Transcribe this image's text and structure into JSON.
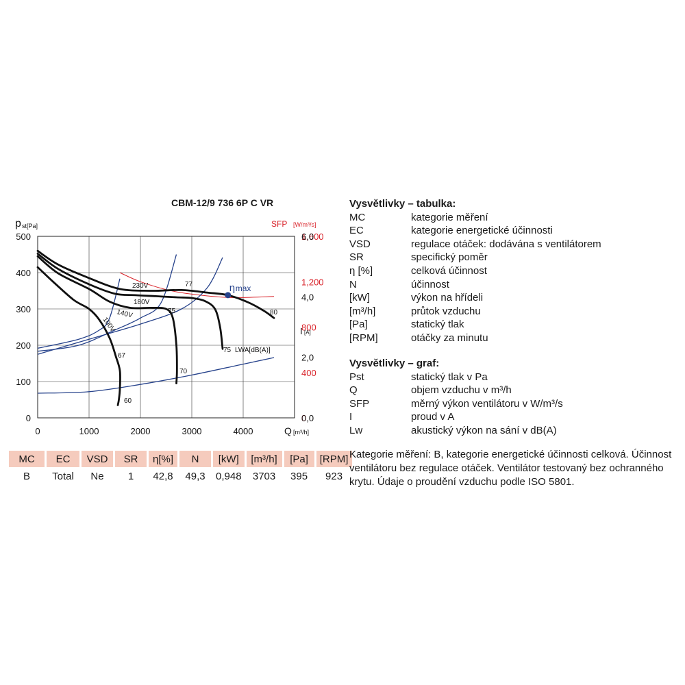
{
  "chart_data": {
    "type": "line",
    "title": "CBM-12/9 736 6P C VR",
    "xlabel": "Q",
    "xunit": "[m³/h]",
    "ylabel": "p",
    "ylabel_sub": "st[Pa]",
    "y2label": "SFP",
    "y2unit": "[W/m³/s]",
    "y3label": "I",
    "y3unit": "[A]",
    "xlim": [
      0,
      5000
    ],
    "ylim": [
      0,
      500
    ],
    "y2lim": [
      0,
      1600
    ],
    "y3lim": [
      0,
      6
    ],
    "x_ticks": [
      "0",
      "1000",
      "2000",
      "3000",
      "4000"
    ],
    "y_ticks": [
      "0",
      "100",
      "200",
      "300",
      "400",
      "500"
    ],
    "y2_ticks": [
      "0",
      "400",
      "800",
      "1,200",
      "1,600"
    ],
    "y3_ticks": [
      "0,0",
      "2,0",
      "4,0",
      "6,0"
    ],
    "grid": true,
    "colors": {
      "pressure": "#111111",
      "sfp": "#d9242b",
      "current": "#26428b",
      "eta": "#26428b"
    },
    "pressure_curves": [
      {
        "name": "230V",
        "x": [
          0,
          400,
          1000,
          1600,
          2200,
          2800,
          3300,
          3700,
          4100,
          4400,
          4600
        ],
        "y": [
          460,
          422,
          385,
          355,
          350,
          352,
          345,
          338,
          318,
          295,
          275
        ]
      },
      {
        "name": "180V",
        "x": [
          0,
          400,
          1000,
          1500,
          1900,
          2300,
          2700,
          3000,
          3250,
          3450,
          3550,
          3600
        ],
        "y": [
          452,
          410,
          368,
          342,
          338,
          335,
          332,
          330,
          322,
          300,
          250,
          190
        ]
      },
      {
        "name": "140V",
        "x": [
          0,
          400,
          1000,
          1400,
          1800,
          2200,
          2500,
          2630,
          2700,
          2710,
          2700
        ],
        "y": [
          445,
          398,
          355,
          320,
          303,
          303,
          300,
          275,
          200,
          130,
          95
        ]
      },
      {
        "name": "100V",
        "x": [
          0,
          300,
          700,
          1000,
          1200,
          1400,
          1520,
          1600,
          1600,
          1580,
          1560
        ],
        "y": [
          415,
          375,
          325,
          300,
          270,
          220,
          170,
          130,
          80,
          50,
          35
        ]
      }
    ],
    "sfp_curve": {
      "x": [
        1600,
        2000,
        2600,
        3200,
        3800,
        4600
      ],
      "y": [
        1280,
        1200,
        1120,
        1080,
        1060,
        1070
      ]
    },
    "current_curves": [
      {
        "x": [
          0,
          800,
          1200,
          1400,
          1600
        ],
        "y": [
          2.3,
          2.6,
          2.9,
          3.3,
          4.6
        ]
      },
      {
        "x": [
          0,
          800,
          1500,
          2000,
          2400,
          2700
        ],
        "y": [
          2.2,
          2.4,
          2.9,
          3.3,
          3.8,
          5.4
        ]
      },
      {
        "x": [
          0,
          1000,
          2000,
          2800,
          3300,
          3600
        ],
        "y": [
          2.1,
          2.6,
          3.1,
          3.6,
          4.3,
          5.3
        ]
      }
    ],
    "lwa_curve": {
      "x": [
        0,
        1000,
        2000,
        3000,
        4000,
        4600
      ],
      "y": [
        68,
        72,
        92,
        118,
        148,
        166
      ]
    },
    "eta_max_point": {
      "x": 3703,
      "y": 338
    },
    "labels": {
      "v230": "230V",
      "v180": "180V",
      "v140": "140V",
      "v100": "100V",
      "n77": "77",
      "n80": "80",
      "n75a": "75",
      "n75b": "75",
      "n70": "70",
      "n67": "67",
      "n60": "60",
      "lwa": "LWA[dB(A)]",
      "eta_sym": "η",
      "eta_sub": "max"
    }
  },
  "table": {
    "headers": [
      "MC",
      "EC",
      "VSD",
      "SR",
      "η[%]",
      "N",
      "[kW]",
      "[m³/h]",
      "[Pa]",
      "[RPM]"
    ],
    "values": [
      "B",
      "Total",
      "Ne",
      "1",
      "42,8",
      "49,3",
      "0,948",
      "3703",
      "395",
      "923"
    ]
  },
  "legend_table": {
    "title": "Vysvětlivky – tabulka:",
    "items": [
      {
        "key": "MC",
        "value": "kategorie měření"
      },
      {
        "key": "EC",
        "value": "kategorie energetické účinnosti"
      },
      {
        "key": "VSD",
        "value": "regulace otáček: dodávána s ventilátorem"
      },
      {
        "key": "SR",
        "value": "specifický poměr"
      },
      {
        "key": "η [%]",
        "value": "celková účinnost"
      },
      {
        "key": "N",
        "value": "účinnost"
      },
      {
        "key": "[kW]",
        "value": "výkon na hřídeli"
      },
      {
        "key": "[m³/h]",
        "value": "průtok vzduchu"
      },
      {
        "key": "[Pa]",
        "value": "statický tlak"
      },
      {
        "key": "[RPM]",
        "value": "otáčky za minutu"
      }
    ]
  },
  "legend_graph": {
    "title": "Vysvětlivky – graf:",
    "items": [
      {
        "key": "Pst",
        "value": "statický tlak v Pa"
      },
      {
        "key": "Q",
        "value": "objem vzduchu v m³/h"
      },
      {
        "key": "SFP",
        "value": "měrný výkon ventilátoru v W/m³/s"
      },
      {
        "key": "I",
        "value": "proud v A"
      },
      {
        "key": "Lw",
        "value": "akustický výkon na sání v dB(A)"
      }
    ]
  },
  "note": "Kategorie měření: B, kategorie energetické účinnosti celková. Účinnost ventilátoru bez regulace otáček. Ventilátor testovaný bez ochranného krytu. Údaje o proudění vzduchu podle ISO 5801."
}
